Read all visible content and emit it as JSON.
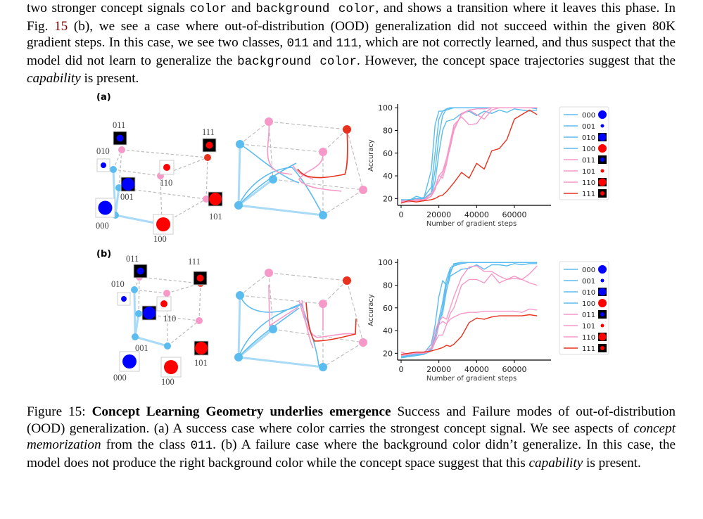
{
  "top_paragraph": {
    "segments": [
      {
        "t": "two stronger concept signals ",
        "s": "text"
      },
      {
        "t": "color",
        "s": "mono"
      },
      {
        "t": " and ",
        "s": "text"
      },
      {
        "t": "background color",
        "s": "mono"
      },
      {
        "t": ", and shows a transition where it leaves this phase.  In Fig. ",
        "s": "text"
      },
      {
        "t": "15",
        "s": "ref"
      },
      {
        "t": " (b), we see a case where out-of-distribution (OOD) generalization did not succeed within the given 80K gradient steps. In this case, we see two classes, ",
        "s": "text"
      },
      {
        "t": "011",
        "s": "mono"
      },
      {
        "t": " and ",
        "s": "text"
      },
      {
        "t": "111",
        "s": "mono"
      },
      {
        "t": ", which are not correctly learned, and thus suspect that the model did not learn to generalize the ",
        "s": "text"
      },
      {
        "t": "background color",
        "s": "mono"
      },
      {
        "t": ". However, the concept space trajectories suggest that the ",
        "s": "text"
      },
      {
        "t": "capability",
        "s": "italic"
      },
      {
        "t": " is present.",
        "s": "text"
      }
    ]
  },
  "panels": {
    "a_label": "(a)",
    "b_label": "(b)",
    "cube_labels": [
      "000",
      "001",
      "010",
      "011",
      "100",
      "101",
      "110",
      "111"
    ]
  },
  "colors": {
    "blue_class": "#5bbcf0",
    "pink_class": "#f799c8",
    "red_class": "#e8321e",
    "blue_dot": "#0000ff",
    "red_dot": "#ff0000"
  },
  "chart_data": [
    {
      "type": "line",
      "panel": "(a)",
      "title": "",
      "xlabel": "Number of gradient steps",
      "ylabel": "Accuracy",
      "xlim": [
        0,
        72000
      ],
      "ylim": [
        14,
        102
      ],
      "xticks": [
        0,
        20000,
        40000,
        60000
      ],
      "yticks": [
        20,
        40,
        60,
        80,
        100
      ],
      "legend_position": "right",
      "x": [
        0,
        4000,
        8000,
        12000,
        16000,
        18000,
        20000,
        22000,
        24000,
        26000,
        28000,
        32000,
        36000,
        40000,
        44000,
        48000,
        52000,
        56000,
        60000,
        64000,
        68000,
        72000
      ],
      "series": [
        {
          "name": "000",
          "color": "#5bbcf0",
          "values": [
            19,
            19,
            20,
            20,
            45,
            85,
            97,
            97,
            98,
            99,
            100,
            100,
            100,
            100,
            100,
            100,
            100,
            100,
            100,
            100,
            100,
            100
          ]
        },
        {
          "name": "001",
          "color": "#5bbcf0",
          "values": [
            18,
            19,
            19,
            21,
            30,
            60,
            90,
            97,
            99,
            100,
            100,
            100,
            100,
            100,
            100,
            100,
            100,
            100,
            100,
            100,
            100,
            100
          ]
        },
        {
          "name": "010",
          "color": "#5bbcf0",
          "values": [
            18,
            18,
            19,
            20,
            25,
            45,
            75,
            93,
            99,
            100,
            100,
            100,
            100,
            100,
            100,
            100,
            100,
            100,
            100,
            100,
            100,
            99
          ]
        },
        {
          "name": "100",
          "color": "#5bbcf0",
          "values": [
            18,
            18,
            22,
            20,
            24,
            35,
            60,
            80,
            88,
            89,
            90,
            95,
            97,
            93,
            97,
            95,
            98,
            96,
            99,
            98,
            97,
            98
          ]
        },
        {
          "name": "011",
          "color": "#f799c8",
          "values": [
            18,
            18,
            19,
            19,
            24,
            30,
            40,
            44,
            55,
            70,
            85,
            92,
            85,
            86,
            95,
            100,
            100,
            100,
            100,
            100,
            100,
            100
          ]
        },
        {
          "name": "101",
          "color": "#f799c8",
          "values": [
            17,
            18,
            18,
            19,
            22,
            28,
            40,
            38,
            50,
            68,
            82,
            94,
            98,
            99,
            99,
            100,
            100,
            100,
            100,
            100,
            100,
            100
          ]
        },
        {
          "name": "110",
          "color": "#f799c8",
          "values": [
            17,
            17,
            18,
            18,
            22,
            30,
            35,
            42,
            52,
            65,
            80,
            95,
            98,
            94,
            90,
            98,
            100,
            100,
            100,
            100,
            100,
            100
          ]
        },
        {
          "name": "111",
          "color": "#e8321e",
          "values": [
            16,
            18,
            17,
            18,
            19,
            20,
            22,
            23,
            26,
            30,
            34,
            43,
            38,
            51,
            46,
            62,
            64,
            72,
            90,
            94,
            98,
            94
          ]
        }
      ]
    },
    {
      "type": "line",
      "panel": "(b)",
      "title": "",
      "xlabel": "Number of gradient steps",
      "ylabel": "Accuracy",
      "xlim": [
        0,
        72000
      ],
      "ylim": [
        14,
        102
      ],
      "xticks": [
        0,
        20000,
        40000,
        60000
      ],
      "yticks": [
        20,
        40,
        60,
        80,
        100
      ],
      "legend_position": "right",
      "x": [
        0,
        4000,
        8000,
        12000,
        16000,
        18000,
        20000,
        22000,
        24000,
        26000,
        28000,
        32000,
        36000,
        40000,
        44000,
        48000,
        52000,
        56000,
        60000,
        64000,
        68000,
        72000
      ],
      "series": [
        {
          "name": "000",
          "color": "#5bbcf0",
          "values": [
            17,
            17,
            19,
            20,
            28,
            45,
            70,
            84,
            80,
            90,
            99,
            100,
            100,
            100,
            100,
            100,
            100,
            100,
            100,
            100,
            100,
            100
          ]
        },
        {
          "name": "001",
          "color": "#5bbcf0",
          "values": [
            16,
            17,
            18,
            19,
            24,
            35,
            50,
            65,
            85,
            95,
            98,
            100,
            100,
            100,
            100,
            100,
            100,
            100,
            100,
            100,
            100,
            100
          ]
        },
        {
          "name": "010",
          "color": "#5bbcf0",
          "values": [
            17,
            17,
            18,
            19,
            22,
            30,
            45,
            60,
            80,
            93,
            97,
            99,
            100,
            100,
            100,
            100,
            100,
            100,
            100,
            100,
            100,
            100
          ]
        },
        {
          "name": "100",
          "color": "#5bbcf0",
          "values": [
            17,
            18,
            19,
            20,
            23,
            32,
            48,
            55,
            75,
            88,
            90,
            94,
            95,
            98,
            94,
            98,
            98,
            97,
            99,
            98,
            99,
            99
          ]
        },
        {
          "name": "011",
          "color": "#f799c8",
          "values": [
            21,
            19,
            21,
            21,
            25,
            40,
            48,
            52,
            50,
            60,
            70,
            87,
            96,
            97,
            92,
            92,
            88,
            85,
            88,
            85,
            82,
            80
          ]
        },
        {
          "name": "101",
          "color": "#f799c8",
          "values": [
            18,
            19,
            20,
            21,
            22,
            30,
            36,
            36,
            45,
            55,
            60,
            80,
            85,
            85,
            82,
            90,
            82,
            85,
            86,
            85,
            90,
            97
          ]
        },
        {
          "name": "110",
          "color": "#f799c8",
          "values": [
            18,
            19,
            20,
            20,
            22,
            32,
            45,
            48,
            46,
            50,
            52,
            55,
            56,
            56,
            57,
            57,
            57,
            57,
            57,
            56,
            59,
            58
          ]
        },
        {
          "name": "111",
          "color": "#e8321e",
          "values": [
            19,
            20,
            21,
            21,
            22,
            23,
            24,
            25,
            27,
            26,
            28,
            35,
            47,
            51,
            50,
            52,
            53,
            53,
            53,
            53,
            54,
            53
          ]
        }
      ]
    }
  ],
  "caption": {
    "segments": [
      {
        "t": "Figure 15: ",
        "s": "text"
      },
      {
        "t": "Concept Learning Geometry underlies emergence",
        "s": "bold"
      },
      {
        "t": " Success and Failure modes of out-of-distribution (OOD) generalization. (a) A success case where color carries the strongest concept signal. We see aspects of ",
        "s": "text"
      },
      {
        "t": "concept memorization",
        "s": "italic"
      },
      {
        "t": " from the class ",
        "s": "text"
      },
      {
        "t": "011",
        "s": "mono"
      },
      {
        "t": ". (b) A failure case where the background color didn’t generalize. In this case, the model does not produce the right background color while the concept space suggest that this ",
        "s": "text"
      },
      {
        "t": "capability",
        "s": "italic"
      },
      {
        "t": " is present.",
        "s": "text"
      }
    ]
  }
}
